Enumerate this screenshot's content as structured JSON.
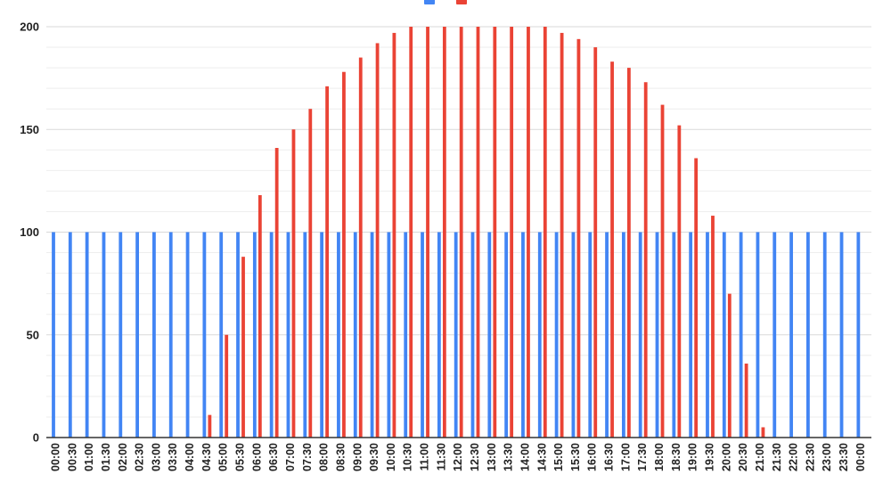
{
  "colors": {
    "series_blue": "#4285F4",
    "series_red": "#EA4335",
    "grid_major": "#d9d9d9",
    "grid_minor": "#eeeeee",
    "axis": "#333333",
    "text": "#222222"
  },
  "chart_data": {
    "type": "bar",
    "title": "",
    "xlabel": "",
    "ylabel": "",
    "ylim": [
      0,
      200
    ],
    "y_ticks": [
      "0",
      "50",
      "100",
      "150",
      "200"
    ],
    "grid": true,
    "legend": "top-center",
    "categories": [
      "00:00",
      "00:30",
      "01:00",
      "01:30",
      "02:00",
      "02:30",
      "03:00",
      "03:30",
      "04:00",
      "04:30",
      "05:00",
      "05:30",
      "06:00",
      "06:30",
      "07:00",
      "07:30",
      "08:00",
      "08:30",
      "09:00",
      "09:30",
      "10:00",
      "10:30",
      "11:00",
      "11:30",
      "12:00",
      "12:30",
      "13:00",
      "13:30",
      "14:00",
      "14:30",
      "15:00",
      "15:30",
      "16:00",
      "16:30",
      "17:00",
      "17:30",
      "18:00",
      "18:30",
      "19:00",
      "19:30",
      "20:00",
      "20:30",
      "21:00",
      "21:30",
      "22:00",
      "22:30",
      "23:00",
      "23:30",
      "00:00"
    ],
    "series": [
      {
        "color": "#4285F4",
        "values": [
          100,
          100,
          100,
          100,
          100,
          100,
          100,
          100,
          100,
          100,
          100,
          100,
          100,
          100,
          100,
          100,
          100,
          100,
          100,
          100,
          100,
          100,
          100,
          100,
          100,
          100,
          100,
          100,
          100,
          100,
          100,
          100,
          100,
          100,
          100,
          100,
          100,
          100,
          100,
          100,
          100,
          100,
          100,
          100,
          100,
          100,
          100,
          100,
          100
        ]
      },
      {
        "color": "#EA4335",
        "values": [
          0,
          0,
          0,
          0,
          0,
          0,
          0,
          0,
          0,
          11,
          50,
          88,
          118,
          141,
          150,
          160,
          171,
          178,
          185,
          192,
          197,
          200,
          200,
          200,
          200,
          200,
          200,
          200,
          200,
          200,
          197,
          194,
          190,
          183,
          180,
          173,
          162,
          152,
          136,
          108,
          70,
          36,
          5,
          0,
          0,
          0,
          0,
          0,
          0
        ]
      }
    ]
  }
}
